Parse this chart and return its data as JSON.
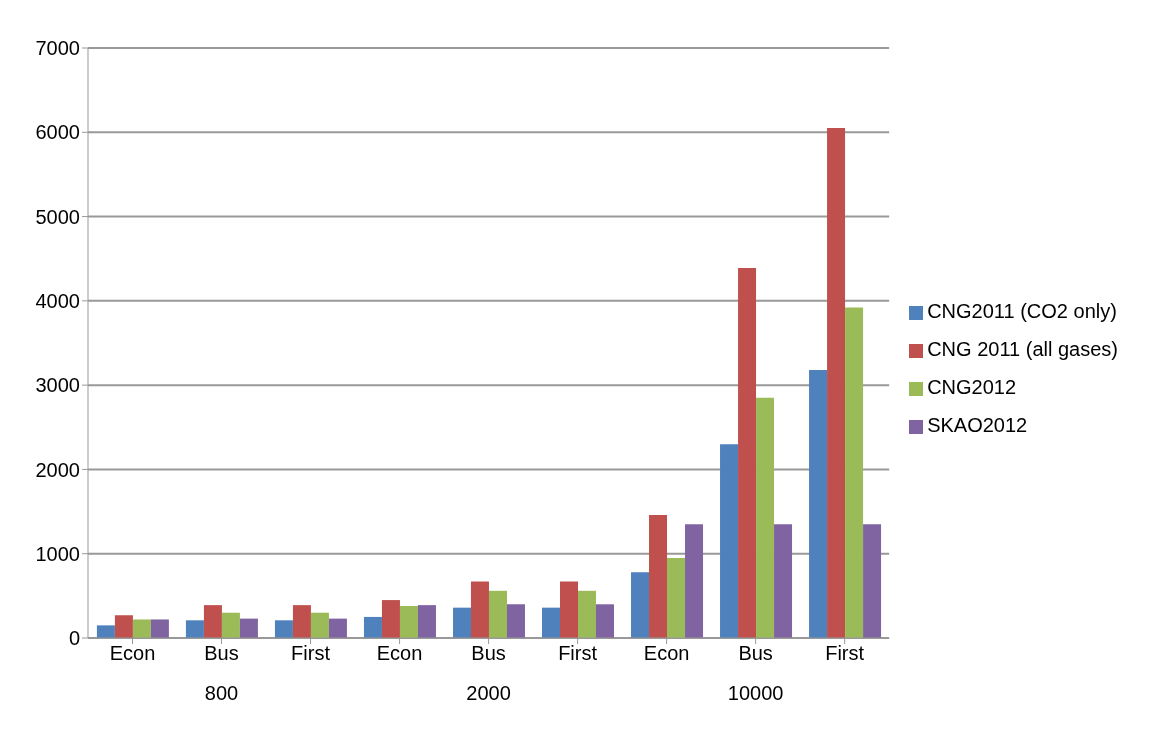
{
  "chart_data": {
    "type": "bar",
    "categories": [
      "Econ",
      "Bus",
      "First",
      "Econ",
      "Bus",
      "First",
      "Econ",
      "Bus",
      "First"
    ],
    "annotations": [
      "800",
      "2000",
      "10000"
    ],
    "series": [
      {
        "name": "CNG2011 (CO2 only)",
        "color": "#4f81bd",
        "values": [
          150,
          210,
          210,
          250,
          360,
          360,
          780,
          2300,
          3180
        ]
      },
      {
        "name": "CNG 2011 (all gases)",
        "color": "#c0504d",
        "values": [
          270,
          390,
          390,
          450,
          670,
          670,
          1460,
          4390,
          6050
        ]
      },
      {
        "name": "CNG2012",
        "color": "#9bbb59",
        "values": [
          220,
          300,
          300,
          380,
          560,
          560,
          950,
          2850,
          3920
        ]
      },
      {
        "name": "SKAO2012",
        "color": "#8064a2",
        "values": [
          220,
          230,
          230,
          390,
          400,
          400,
          1350,
          1350,
          1350
        ]
      }
    ],
    "ylim": [
      0,
      7000
    ],
    "yticks": [
      0,
      1000,
      2000,
      3000,
      4000,
      5000,
      6000,
      7000
    ],
    "grid": "y",
    "legend": "right"
  }
}
